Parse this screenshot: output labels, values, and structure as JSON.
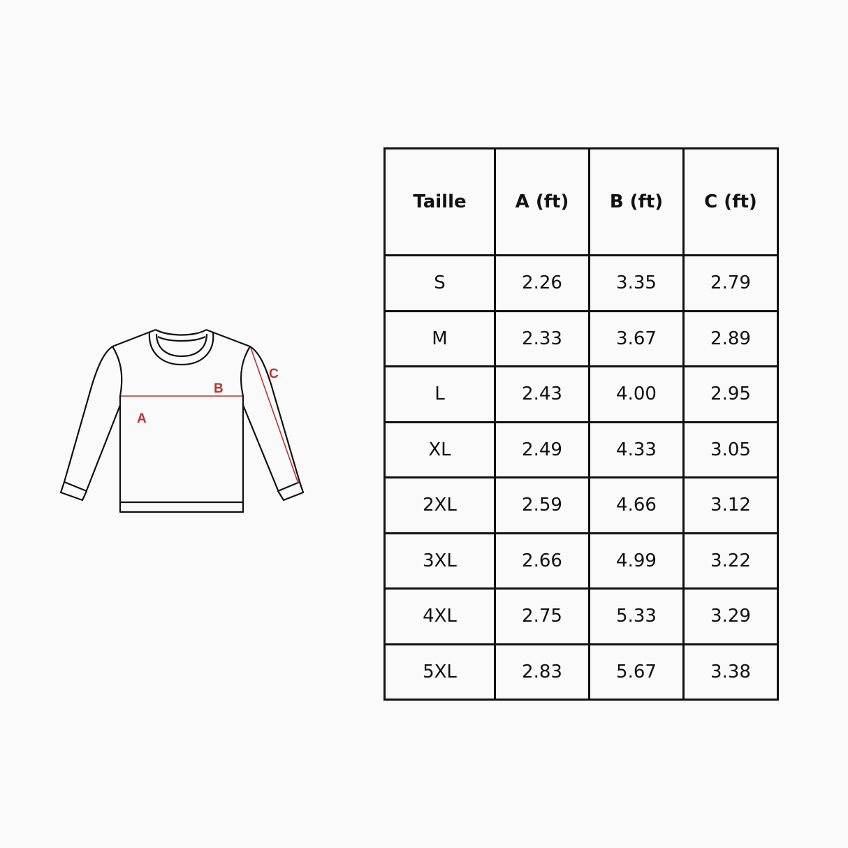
{
  "diagram": {
    "labels": {
      "a": "A",
      "b": "B",
      "c": "C"
    },
    "colors": {
      "outline": "#111111",
      "measure": "#c0302a"
    }
  },
  "table": {
    "headers": [
      "Taille",
      "A (ft)",
      "B (ft)",
      "C (ft)"
    ],
    "rows": [
      [
        "S",
        "2.26",
        "3.35",
        "2.79"
      ],
      [
        "M",
        "2.33",
        "3.67",
        "2.89"
      ],
      [
        "L",
        "2.43",
        "4.00",
        "2.95"
      ],
      [
        "XL",
        "2.49",
        "4.33",
        "3.05"
      ],
      [
        "2XL",
        "2.59",
        "4.66",
        "3.12"
      ],
      [
        "3XL",
        "2.66",
        "4.99",
        "3.22"
      ],
      [
        "4XL",
        "2.75",
        "5.33",
        "3.29"
      ],
      [
        "5XL",
        "2.83",
        "5.67",
        "3.38"
      ]
    ]
  }
}
